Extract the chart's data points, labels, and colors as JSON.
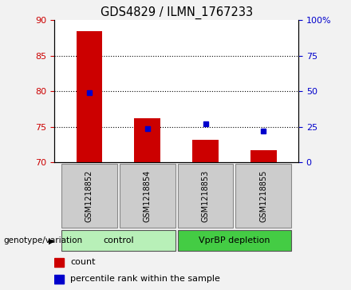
{
  "title": "GDS4829 / ILMN_1767233",
  "samples": [
    "GSM1218852",
    "GSM1218854",
    "GSM1218853",
    "GSM1218855"
  ],
  "bar_values": [
    88.5,
    76.2,
    73.2,
    71.7
  ],
  "percentile_values": [
    49,
    24,
    27,
    22
  ],
  "ylim_left": [
    70,
    90
  ],
  "ylim_right": [
    0,
    100
  ],
  "yticks_left": [
    70,
    75,
    80,
    85,
    90
  ],
  "yticks_right": [
    0,
    25,
    50,
    75,
    100
  ],
  "ytick_labels_right": [
    "0",
    "25",
    "50",
    "75",
    "100%"
  ],
  "bar_color": "#cc0000",
  "point_color": "#0000cc",
  "groups": [
    {
      "label": "control",
      "indices": [
        0,
        1
      ],
      "color": "#b8f0b8"
    },
    {
      "label": "VprBP depletion",
      "indices": [
        2,
        3
      ],
      "color": "#44cc44"
    }
  ],
  "group_row_label": "genotype/variation",
  "legend_bar_label": "count",
  "legend_point_label": "percentile rank within the sample",
  "fig_bg": "#f2f2f2",
  "plot_bg": "#ffffff",
  "bar_base": 70,
  "bar_width": 0.45,
  "label_box_color": "#cccccc"
}
